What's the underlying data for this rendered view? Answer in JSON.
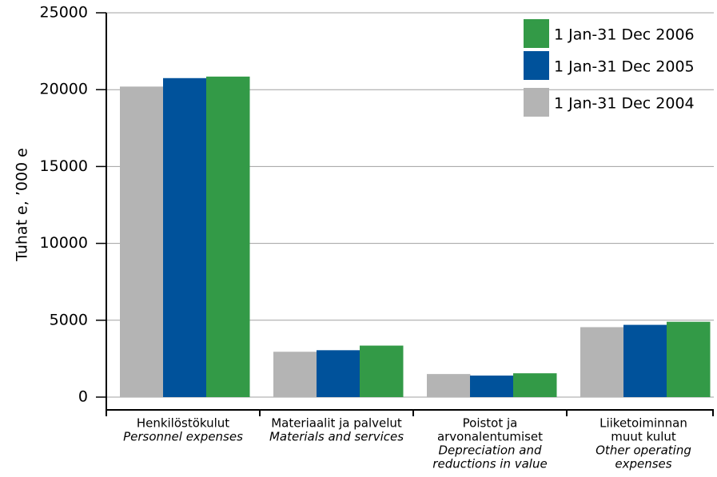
{
  "chart_data": {
    "type": "bar",
    "ylabel": "Tuhat e, ’000 e",
    "categories": [
      [
        "Henkilöstökulut"
      ],
      [
        "Materiaalit ja palvelut"
      ],
      [
        "Poistot ja",
        "arvonalentumiset"
      ],
      [
        "Liiketoiminnan",
        "muut kulut"
      ]
    ],
    "categories_en": [
      [
        "Personnel expenses"
      ],
      [
        "Materials and services"
      ],
      [
        "Depreciation and",
        "reductions in value"
      ],
      [
        "Other operating",
        "expenses"
      ]
    ],
    "series": [
      {
        "name": "1 Jan-31 Dec 2004",
        "color": "#b4b4b4",
        "values": [
          20200,
          2950,
          1500,
          4550
        ]
      },
      {
        "name": "1 Jan-31 Dec 2005",
        "color": "#00529b",
        "values": [
          20750,
          3050,
          1400,
          4700
        ]
      },
      {
        "name": "1 Jan-31 Dec 2006",
        "color": "#339a47",
        "values": [
          20850,
          3350,
          1550,
          4900
        ]
      }
    ],
    "ylim": [
      0,
      25000
    ],
    "yticks": [
      0,
      5000,
      10000,
      15000,
      20000,
      25000
    ],
    "grid": true,
    "legend": "top-right"
  }
}
